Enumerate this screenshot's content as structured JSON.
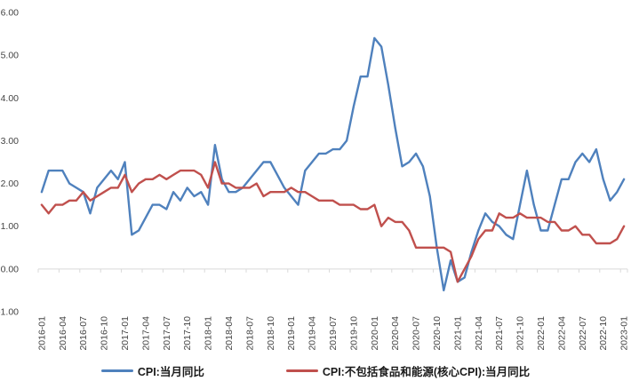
{
  "chart_data": {
    "type": "line",
    "x": [
      "2016-01",
      "2016-02",
      "2016-03",
      "2016-04",
      "2016-05",
      "2016-06",
      "2016-07",
      "2016-08",
      "2016-09",
      "2016-10",
      "2016-11",
      "2016-12",
      "2017-01",
      "2017-02",
      "2017-03",
      "2017-04",
      "2017-05",
      "2017-06",
      "2017-07",
      "2017-08",
      "2017-09",
      "2017-10",
      "2017-11",
      "2017-12",
      "2018-01",
      "2018-02",
      "2018-03",
      "2018-04",
      "2018-05",
      "2018-06",
      "2018-07",
      "2018-08",
      "2018-09",
      "2018-10",
      "2018-11",
      "2018-12",
      "2019-01",
      "2019-02",
      "2019-03",
      "2019-04",
      "2019-05",
      "2019-06",
      "2019-07",
      "2019-08",
      "2019-09",
      "2019-10",
      "2019-11",
      "2019-12",
      "2020-01",
      "2020-02",
      "2020-03",
      "2020-04",
      "2020-05",
      "2020-06",
      "2020-07",
      "2020-08",
      "2020-09",
      "2020-10",
      "2020-11",
      "2020-12",
      "2021-01",
      "2021-02",
      "2021-03",
      "2021-04",
      "2021-05",
      "2021-06",
      "2021-07",
      "2021-08",
      "2021-09",
      "2021-10",
      "2021-11",
      "2021-12",
      "2022-01",
      "2022-02",
      "2022-03",
      "2022-04",
      "2022-05",
      "2022-06",
      "2022-07",
      "2022-08",
      "2022-09",
      "2022-10",
      "2022-11",
      "2022-12",
      "2023-01"
    ],
    "x_tick_every": 3,
    "series": [
      {
        "name": "CPI:当月同比",
        "color": "#4F81BD",
        "values": [
          1.8,
          2.3,
          2.3,
          2.3,
          2.0,
          1.9,
          1.8,
          1.3,
          1.9,
          2.1,
          2.3,
          2.1,
          2.5,
          0.8,
          0.9,
          1.2,
          1.5,
          1.5,
          1.4,
          1.8,
          1.6,
          1.9,
          1.7,
          1.8,
          1.5,
          2.9,
          2.1,
          1.8,
          1.8,
          1.9,
          2.1,
          2.3,
          2.5,
          2.5,
          2.2,
          1.9,
          1.7,
          1.5,
          2.3,
          2.5,
          2.7,
          2.7,
          2.8,
          2.8,
          3.0,
          3.8,
          4.5,
          4.5,
          5.4,
          5.2,
          4.3,
          3.3,
          2.4,
          2.5,
          2.7,
          2.4,
          1.7,
          0.5,
          -0.5,
          0.2,
          -0.3,
          -0.2,
          0.4,
          0.9,
          1.3,
          1.1,
          1.0,
          0.8,
          0.7,
          1.5,
          2.3,
          1.5,
          0.9,
          0.9,
          1.5,
          2.1,
          2.1,
          2.5,
          2.7,
          2.5,
          2.8,
          2.1,
          1.6,
          1.8,
          2.1
        ]
      },
      {
        "name": "CPI:不包括食品和能源(核心CPI):当月同比",
        "color": "#C0504D",
        "values": [
          1.5,
          1.3,
          1.5,
          1.5,
          1.6,
          1.6,
          1.8,
          1.6,
          1.7,
          1.8,
          1.9,
          1.9,
          2.2,
          1.8,
          2.0,
          2.1,
          2.1,
          2.2,
          2.1,
          2.2,
          2.3,
          2.3,
          2.3,
          2.2,
          1.9,
          2.5,
          2.0,
          2.0,
          1.9,
          1.9,
          1.9,
          2.0,
          1.7,
          1.8,
          1.8,
          1.8,
          1.9,
          1.8,
          1.8,
          1.7,
          1.6,
          1.6,
          1.6,
          1.5,
          1.5,
          1.5,
          1.4,
          1.4,
          1.5,
          1.0,
          1.2,
          1.1,
          1.1,
          0.9,
          0.5,
          0.5,
          0.5,
          0.5,
          0.5,
          0.4,
          -0.3,
          0.0,
          0.3,
          0.7,
          0.9,
          0.9,
          1.3,
          1.2,
          1.2,
          1.3,
          1.2,
          1.2,
          1.2,
          1.1,
          1.1,
          0.9,
          0.9,
          1.0,
          0.8,
          0.8,
          0.6,
          0.6,
          0.6,
          0.7,
          1.0
        ]
      }
    ],
    "ylim": [
      -1,
      6
    ],
    "yticks": [
      "6.00",
      "5.00",
      "4.00",
      "3.00",
      "2.00",
      "1.00",
      "0.00",
      "-1.00"
    ],
    "grid": false,
    "legend_position": "bottom",
    "axis_color": "#D9D9D9",
    "tick_label_color": "#444444",
    "line_width": 2.4
  }
}
